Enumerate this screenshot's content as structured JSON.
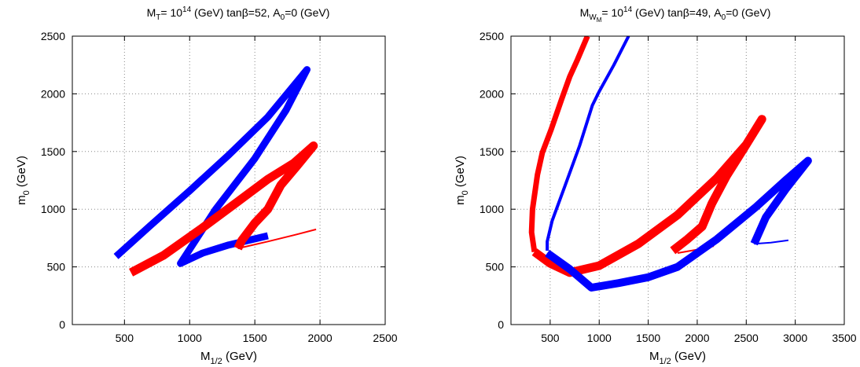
{
  "chart_data": [
    {
      "type": "line",
      "title": {
        "main": "M",
        "sub": "T",
        "mid": "= 10",
        "sup": "14",
        "rest": " (GeV) tanβ=52, A",
        "sub2": "0",
        "end": "=0 (GeV)"
      },
      "xlabel": {
        "main": "M",
        "sub": "1/2",
        "rest": " (GeV)"
      },
      "ylabel": {
        "main": "m",
        "sub": "0",
        "rest": " (GeV)"
      },
      "xlim": [
        100,
        2500
      ],
      "ylim": [
        0,
        2500
      ],
      "xticks": [
        "500",
        "1000",
        "1500",
        "2000",
        "2500"
      ],
      "yticks": [
        "0",
        "500",
        "1000",
        "1500",
        "2000",
        "2500"
      ],
      "grid": true,
      "series": [
        {
          "color": "#0000ff",
          "width": 9,
          "x": [
            435,
            700,
            1000,
            1300,
            1600,
            1900,
            1740,
            1500,
            1200,
            930,
            1100,
            1300,
            1600
          ],
          "y": [
            590,
            860,
            1160,
            1470,
            1800,
            2210,
            1860,
            1440,
            1000,
            530,
            620,
            690,
            770
          ]
        },
        {
          "color": "#ff0000",
          "width": 11,
          "x": [
            550,
            800,
            1100,
            1350,
            1600,
            1800,
            1950,
            1820,
            1700,
            1600,
            1500,
            1400,
            1370
          ],
          "y": [
            450,
            600,
            840,
            1050,
            1260,
            1400,
            1550,
            1370,
            1210,
            1000,
            880,
            730,
            660
          ]
        },
        {
          "color": "#ff0000",
          "width": 2,
          "x": [
            1370,
            1600,
            1800,
            1970
          ],
          "y": [
            660,
            720,
            775,
            825
          ]
        }
      ]
    },
    {
      "type": "line",
      "title": {
        "main": "M",
        "sub": "W",
        "subsub": "M",
        "mid": "= 10",
        "sup": "14",
        "rest": " (GeV) tanβ=49, A",
        "sub2": "0",
        "end": "=0 (GeV)"
      },
      "xlabel": {
        "main": "M",
        "sub": "1/2",
        "rest": " (GeV)"
      },
      "ylabel": {
        "main": "m",
        "sub": "0",
        "rest": " (GeV)"
      },
      "xlim": [
        100,
        3500
      ],
      "ylim": [
        0,
        2500
      ],
      "xticks": [
        "500",
        "1000",
        "1500",
        "2000",
        "2500",
        "3000",
        "3500"
      ],
      "yticks": [
        "0",
        "500",
        "1000",
        "1500",
        "2000",
        "2500"
      ],
      "grid": true,
      "series": [
        {
          "color": "#ff0000",
          "width": 7,
          "x": [
            880,
            780,
            700,
            620,
            510,
            420,
            370,
            320,
            310,
            340
          ],
          "y": [
            2500,
            2300,
            2150,
            1960,
            1690,
            1490,
            1300,
            1000,
            800,
            630
          ]
        },
        {
          "color": "#0000ff",
          "width": 4,
          "x": [
            1300,
            1150,
            1000,
            930,
            800,
            650,
            520,
            470,
            470
          ],
          "y": [
            2500,
            2250,
            2020,
            1900,
            1550,
            1200,
            900,
            720,
            640
          ]
        },
        {
          "color": "#ff0000",
          "width": 11,
          "x": [
            340,
            500,
            700,
            1000,
            1400,
            1800,
            2200,
            2500,
            2660,
            2500,
            2300,
            2150,
            2050,
            1900,
            1750
          ],
          "y": [
            630,
            530,
            450,
            510,
            700,
            950,
            1270,
            1560,
            1780,
            1560,
            1290,
            1050,
            850,
            740,
            640
          ]
        },
        {
          "color": "#ff0000",
          "width": 2,
          "x": [
            1800,
            2000,
            2170
          ],
          "y": [
            620,
            650,
            680
          ]
        },
        {
          "color": "#0000ff",
          "width": 10,
          "x": [
            470,
            700,
            920,
            1200,
            1500,
            1800,
            2200,
            2600,
            2900,
            3130,
            2900,
            2700,
            2580
          ],
          "y": [
            620,
            480,
            320,
            360,
            410,
            500,
            740,
            1020,
            1250,
            1420,
            1170,
            930,
            700
          ]
        },
        {
          "color": "#0000ff",
          "width": 2,
          "x": [
            2580,
            2750,
            2930
          ],
          "y": [
            700,
            710,
            730
          ]
        }
      ]
    }
  ]
}
